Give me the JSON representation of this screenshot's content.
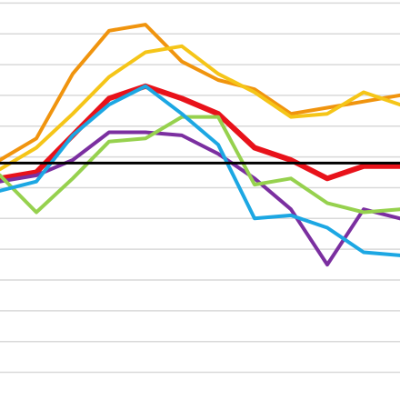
{
  "chart_data": {
    "type": "line",
    "title": "",
    "xlabel": "",
    "ylabel": "",
    "x": [
      0,
      1,
      2,
      3,
      4,
      5,
      6,
      7,
      8,
      9,
      10,
      11
    ],
    "xlim": [
      0,
      11
    ],
    "ylim": [
      0,
      13
    ],
    "grid": true,
    "gridlines_y": [
      0.9,
      1.9,
      2.9,
      3.9,
      4.9,
      5.9,
      6.9,
      7.9,
      8.9,
      9.9,
      10.9,
      11.9,
      12.9
    ],
    "reference_line": {
      "y": 7.7,
      "color": "#000000"
    },
    "legend": "none",
    "grid_color": "#d9d9d9",
    "series": [
      {
        "color": "#f0940e",
        "values": [
          7.8,
          8.5,
          10.6,
          12.0,
          12.2,
          11.0,
          10.4,
          10.1,
          9.3,
          9.5,
          9.7,
          9.9
        ]
      },
      {
        "color": "#f5c518",
        "values": [
          7.5,
          8.2,
          9.3,
          10.5,
          11.3,
          11.5,
          10.6,
          10.0,
          9.2,
          9.3,
          10.0,
          9.6
        ]
      },
      {
        "color": "#e8121a",
        "values": [
          7.2,
          7.4,
          8.6,
          9.8,
          10.2,
          9.8,
          9.3,
          8.2,
          7.8,
          7.2,
          7.6,
          7.6
        ]
      },
      {
        "color": "#7b2fa0",
        "values": [
          7.1,
          7.3,
          7.8,
          8.7,
          8.7,
          8.6,
          8.0,
          7.2,
          6.2,
          4.4,
          6.2,
          5.9
        ]
      },
      {
        "color": "#96d14e",
        "values": [
          7.3,
          6.1,
          7.2,
          8.4,
          8.5,
          9.2,
          9.2,
          7.0,
          7.2,
          6.4,
          6.1,
          6.2
        ]
      },
      {
        "color": "#1ca7e3",
        "values": [
          6.8,
          7.1,
          8.6,
          9.6,
          10.2,
          9.3,
          8.3,
          5.9,
          6.0,
          5.6,
          4.8,
          4.7
        ]
      }
    ]
  }
}
